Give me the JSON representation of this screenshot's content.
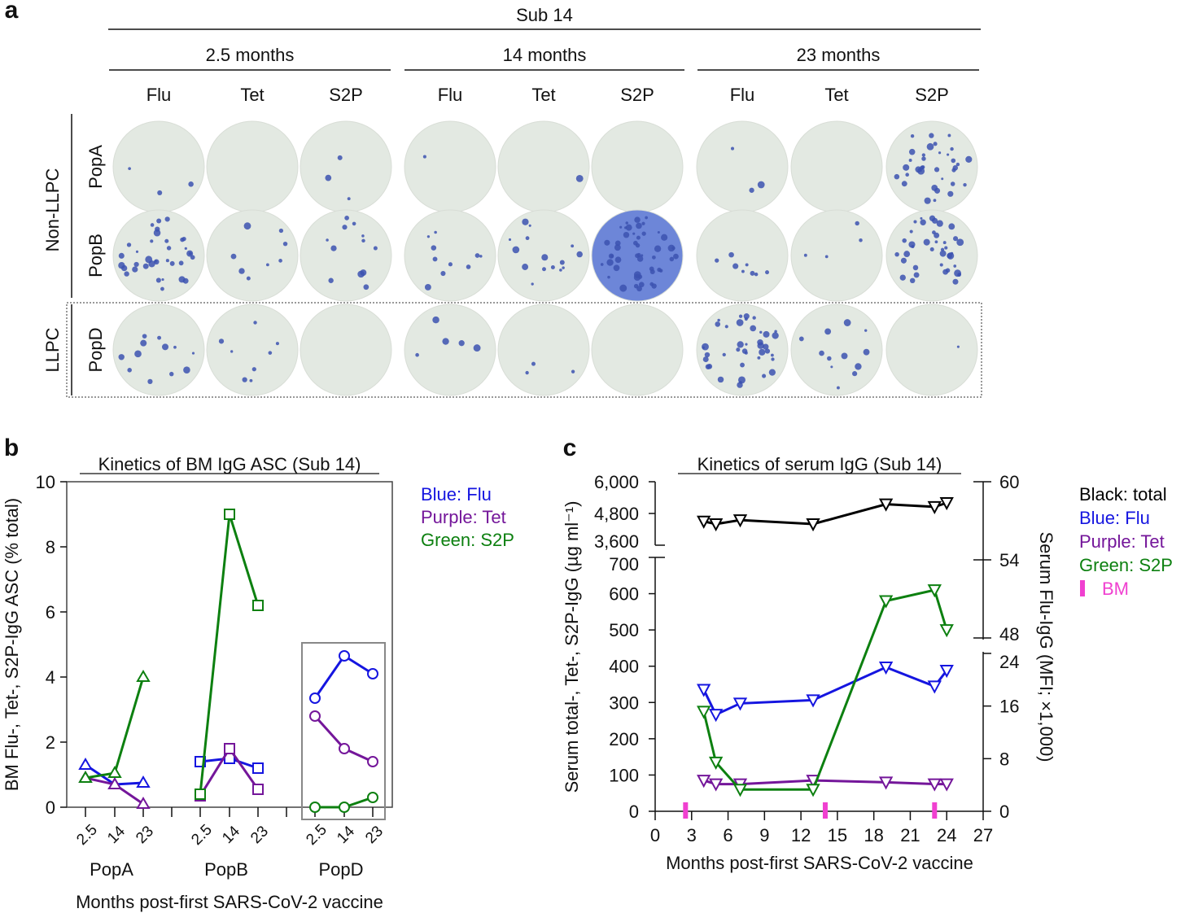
{
  "panel_a": {
    "letter": "a",
    "subject": "Sub 14",
    "timepoints": [
      "2.5 months",
      "14 months",
      "23 months"
    ],
    "antigens": [
      "Flu",
      "Tet",
      "S2P"
    ],
    "rows": [
      "PopA",
      "PopB",
      "PopD"
    ],
    "row_groups": [
      "Non-LLPC",
      "LLPC"
    ],
    "approx_spot_counts": [
      [
        3,
        0,
        3,
        1,
        1,
        0,
        3,
        0,
        35
      ],
      [
        35,
        8,
        12,
        10,
        15,
        50,
        8,
        4,
        40
      ],
      [
        12,
        8,
        0,
        5,
        3,
        0,
        40,
        12,
        1
      ]
    ],
    "well_color": "#e3e9e2",
    "spot_color": "#3c52b0",
    "tinted_well_color": "#6d86d8"
  },
  "chart_data": [
    {
      "type": "line",
      "letter": "b",
      "title": "Kinetics of BM IgG ASC (Sub 14)",
      "ylabel": "BM Flu-, Tet-, S2P-IgG ASC (% total)",
      "xlabel": "Months post-first SARS-CoV-2 vaccine",
      "ylim": [
        0,
        10
      ],
      "yticks": [
        "0",
        "2",
        "4",
        "6",
        "8",
        "10"
      ],
      "groups": [
        "PopA",
        "PopB",
        "PopD"
      ],
      "categories": [
        "2.5",
        "14",
        "23"
      ],
      "markers": {
        "PopA": "triangle",
        "PopB": "square",
        "PopD": "circle"
      },
      "legend": [
        "Blue: Flu",
        "Purple: Tet",
        "Green: S2P"
      ],
      "legend_placement": "right",
      "series": [
        {
          "color": "#1515e0",
          "values": {
            "PopA": [
              1.3,
              0.7,
              0.75
            ],
            "PopB": [
              1.4,
              1.5,
              1.2
            ],
            "PopD": [
              3.35,
              4.65,
              4.1
            ]
          }
        },
        {
          "color": "#74169a",
          "values": {
            "PopA": [
              0.9,
              0.7,
              0.1
            ],
            "PopB": [
              0.35,
              1.8,
              0.55
            ],
            "PopD": [
              2.8,
              1.8,
              1.4
            ]
          }
        },
        {
          "color": "#0d8010",
          "values": {
            "PopA": [
              0.9,
              1.05,
              4.0
            ],
            "PopB": [
              0.4,
              9.0,
              6.2
            ],
            "PopD": [
              0,
              0,
              0.3
            ]
          }
        }
      ]
    },
    {
      "type": "line",
      "letter": "c",
      "title": "Kinetics of serum IgG (Sub 14)",
      "ylabel": "Serum total-, Tet-, S2P-IgG (µg ml⁻¹)",
      "ylabel_right": "Serum Flu-IgG (MFI; ×1,000)",
      "xlabel": "Months post-first SARS-CoV-2 vaccine",
      "xlim": [
        0,
        27
      ],
      "xticks": [
        "0",
        "3",
        "6",
        "9",
        "12",
        "15",
        "18",
        "21",
        "24",
        "27"
      ],
      "yticks_left_upper": [
        "3,600",
        "4,800",
        "6,000"
      ],
      "yticks_left_lower": [
        "0",
        "100",
        "200",
        "300",
        "400",
        "500",
        "600",
        "700"
      ],
      "yticks_right_upper": [
        "48",
        "54",
        "60"
      ],
      "yticks_right_lower": [
        "0",
        "8",
        "16",
        "24"
      ],
      "x": [
        4,
        5,
        7,
        13,
        19,
        23,
        24
      ],
      "marker": "inverted-triangle",
      "series": [
        {
          "color": "#000000",
          "axis": "left-upper",
          "values": [
            4500,
            4400,
            4550,
            4400,
            5150,
            5050,
            5200
          ]
        },
        {
          "color": "#1515e0",
          "axis": "right-lower",
          "values": [
            18.5,
            14.7,
            16.4,
            16.9,
            21.9,
            19.0,
            21.4
          ]
        },
        {
          "color": "#74169a",
          "axis": "left-lower",
          "values": [
            85,
            75,
            75,
            85,
            80,
            75,
            75
          ]
        },
        {
          "color": "#0d8010",
          "axis": "left-lower",
          "values": [
            275,
            135,
            60,
            60,
            580,
            610,
            500
          ]
        }
      ],
      "bm_timepoints": [
        2.5,
        14,
        23
      ],
      "bm_color": "#f040d0",
      "legend": [
        "Black: total",
        "Blue: Flu",
        "Purple: Tet",
        "Green: S2P",
        "BM"
      ],
      "legend_colors": [
        "#000000",
        "#1515e0",
        "#74169a",
        "#0d8010",
        "#f040d0"
      ],
      "legend_placement": "right"
    }
  ]
}
